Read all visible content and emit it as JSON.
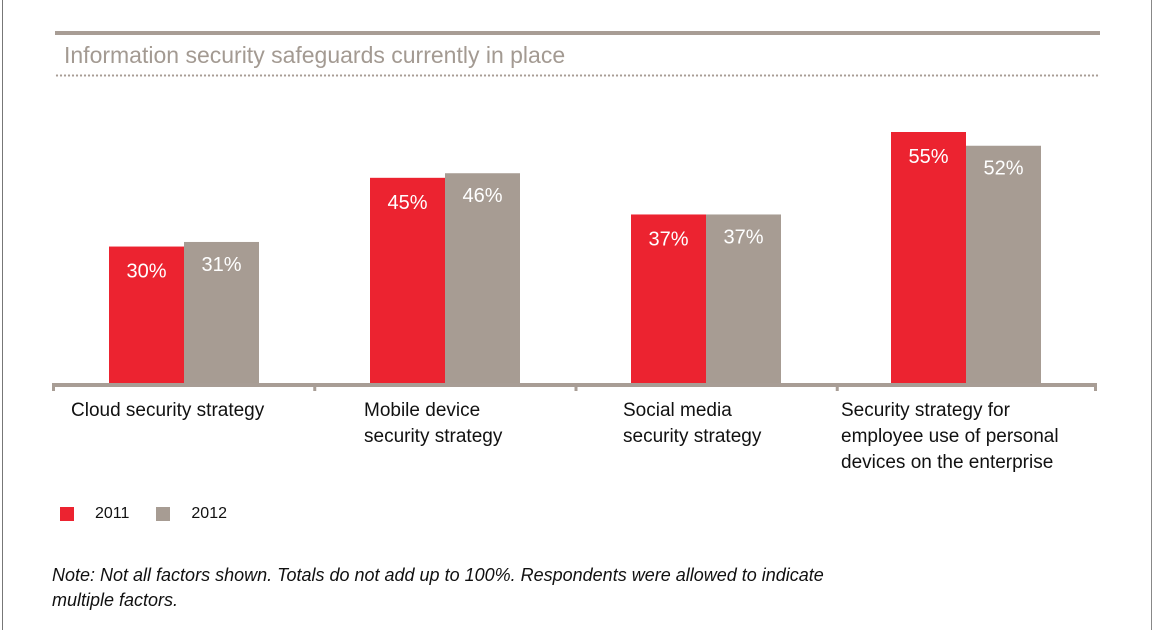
{
  "chart_data": {
    "type": "bar",
    "title": "Information security safeguards currently in place",
    "categories": [
      "Cloud security strategy",
      "Mobile device\nsecurity strategy",
      "Social media\nsecurity strategy",
      "Security strategy for\nemployee use of personal\ndevices on the enterprise"
    ],
    "series": [
      {
        "name": "2011",
        "color": "#ec2330",
        "values": [
          30,
          45,
          37,
          55
        ],
        "labels": [
          "30%",
          "45%",
          "37%",
          "55%"
        ]
      },
      {
        "name": "2012",
        "color": "#a79c93",
        "values": [
          31,
          46,
          37,
          52
        ],
        "labels": [
          "31%",
          "46%",
          "37%",
          "52%"
        ]
      }
    ],
    "xlabel": "",
    "ylabel": "",
    "ylim": [
      0,
      55
    ],
    "grid": false,
    "legend_position": "bottom-left",
    "note": "Note: Not all factors shown. Totals do not add up to 100%. Respondents were allowed to indicate\nmultiple factors."
  }
}
